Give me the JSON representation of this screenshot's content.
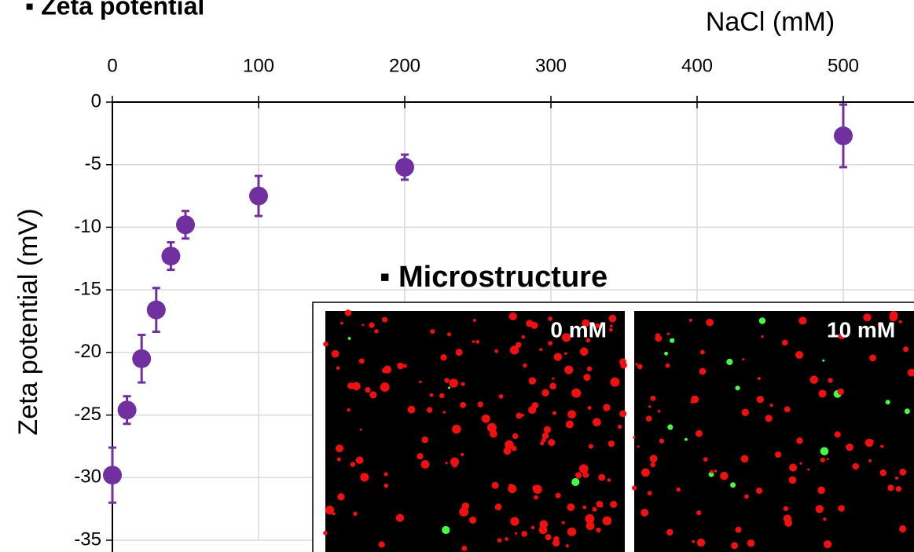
{
  "chart_data": {
    "type": "scatter",
    "title": "▪ Zeta potential",
    "x_label": "NaCl (mM)",
    "y_label": "Zeta potential (mV)",
    "x": [
      0,
      10,
      20,
      30,
      40,
      50,
      100,
      200,
      500
    ],
    "series": [
      {
        "color": "#7030a0",
        "values": [
          -29.8,
          -24.6,
          -20.5,
          -16.6,
          -12.3,
          -9.8,
          -7.5,
          -5.2,
          -2.7
        ],
        "errors": [
          2.2,
          1.1,
          1.9,
          1.75,
          1.1,
          1.1,
          1.6,
          1.0,
          2.5
        ]
      }
    ],
    "xlim": [
      0,
      550
    ],
    "xticks": [
      0,
      100,
      200,
      300,
      400,
      500
    ],
    "ylim": [
      -35,
      0
    ],
    "yticks": [
      0,
      -5,
      -10,
      -15,
      -20,
      -25,
      -30,
      -35
    ],
    "grid": true,
    "inset": {
      "title": "▪ Microstructure",
      "panels": [
        "0 mM",
        "10 mM"
      ]
    }
  }
}
